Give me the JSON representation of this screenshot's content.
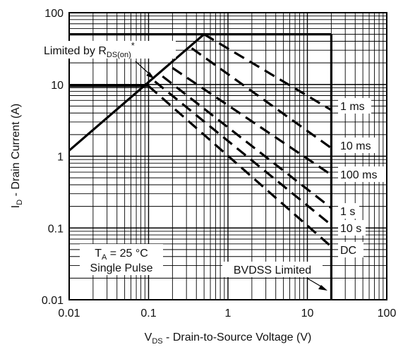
{
  "chart_data": {
    "type": "line",
    "xlabel": {
      "main": "V",
      "sub": "DS",
      "rest": " - Drain-to-Source Voltage (V)"
    },
    "ylabel": {
      "main": "I",
      "sub": "D",
      "rest": " - Drain Current (A)"
    },
    "x_scale": "log",
    "y_scale": "log",
    "xlim": [
      0.01,
      100
    ],
    "ylim": [
      0.01,
      100
    ],
    "grid": true,
    "x_ticks": [
      "0.01",
      "0.1",
      "1",
      "10",
      "100"
    ],
    "y_ticks": [
      "0.01",
      "0.1",
      "1",
      "10",
      "100"
    ],
    "x_tick_values": [
      0.01,
      0.1,
      1,
      10,
      100
    ],
    "y_tick_values": [
      0.01,
      0.1,
      1,
      10,
      100
    ],
    "series": [
      {
        "name": "Limited by RDS(on)",
        "style": "solid",
        "x": [
          0.01,
          0.5
        ],
        "y": [
          1.2,
          50
        ]
      },
      {
        "name": "",
        "style": "solid",
        "x": [
          0.01,
          0.1
        ],
        "y": [
          9.5,
          9.5
        ]
      },
      {
        "name": "",
        "style": "solid",
        "x": [
          0.01,
          20
        ],
        "y": [
          50,
          50
        ]
      },
      {
        "name": "BVDSS Limited",
        "style": "solid",
        "x": [
          20,
          20
        ],
        "y": [
          0.01,
          50
        ]
      },
      {
        "name": "1 ms",
        "style": "dashed",
        "x": [
          0.5,
          20
        ],
        "y": [
          50,
          4.4
        ]
      },
      {
        "name": "10 ms",
        "style": "dashed",
        "x": [
          0.35,
          20
        ],
        "y": [
          32,
          1.3
        ]
      },
      {
        "name": "100 ms",
        "style": "dashed",
        "x": [
          0.2,
          20
        ],
        "y": [
          17,
          0.55
        ]
      },
      {
        "name": "1 s",
        "style": "dashed",
        "x": [
          0.15,
          20
        ],
        "y": [
          13,
          0.19
        ]
      },
      {
        "name": "10 s",
        "style": "dashed",
        "x": [
          0.12,
          20
        ],
        "y": [
          11,
          0.11
        ]
      },
      {
        "name": "DC",
        "style": "dashed",
        "x": [
          0.1,
          20
        ],
        "y": [
          9.5,
          0.055
        ]
      }
    ],
    "annotations": {
      "rds_limit": {
        "text": "Limited by R",
        "sub": "DS(on)",
        "sup": "*"
      },
      "bvdss": "BVDSS Limited",
      "ta": {
        "main": "T",
        "sub": "A",
        "rest": " = 25 °C"
      },
      "pulse": "Single Pulse",
      "curve_labels": [
        "1 ms",
        "10 ms",
        "100 ms",
        "1 s",
        "10 s",
        "DC"
      ]
    }
  }
}
